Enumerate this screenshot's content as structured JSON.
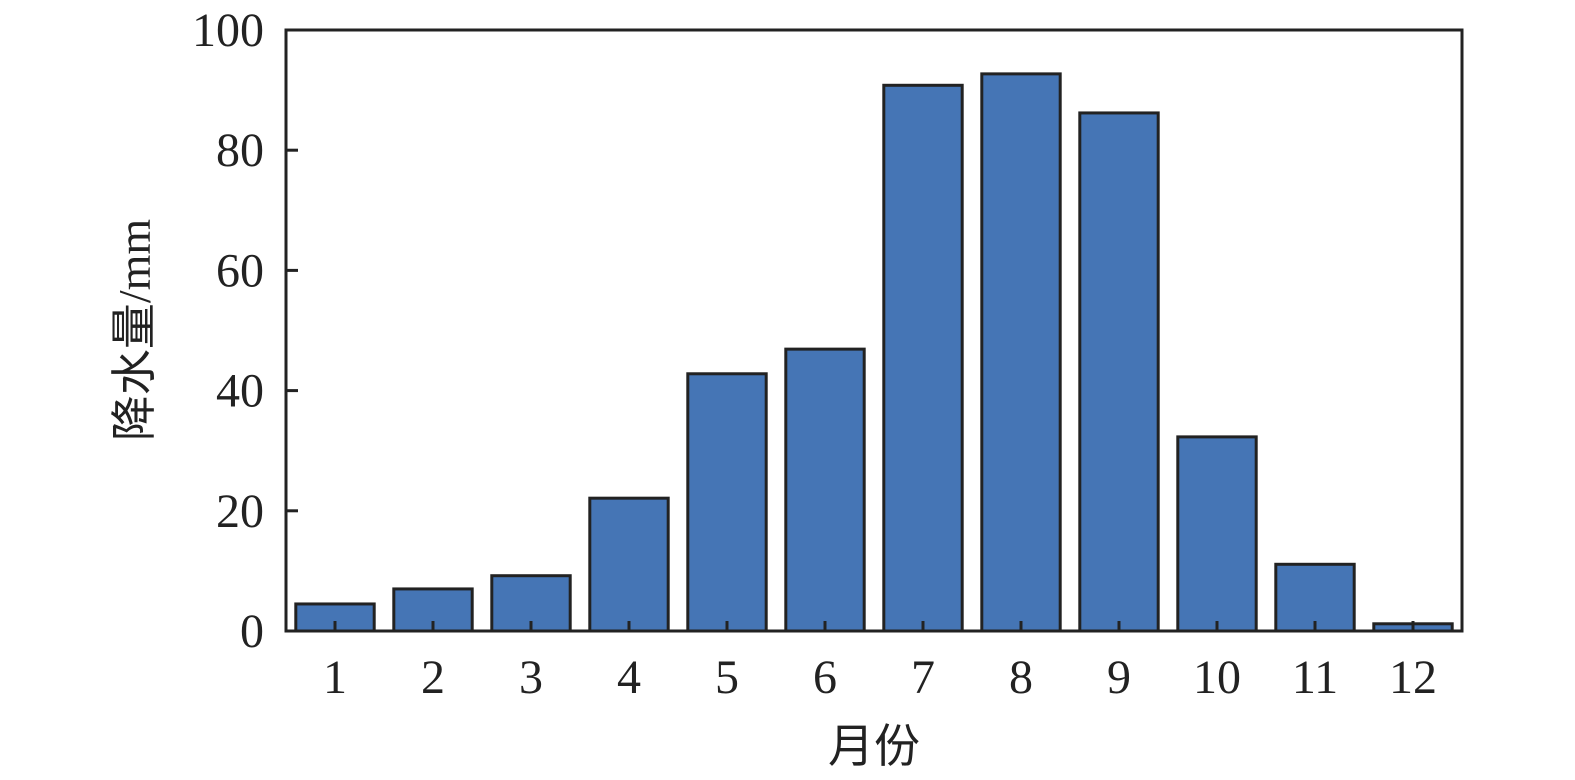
{
  "chart_data": {
    "type": "bar",
    "title": "",
    "xlabel": "月份",
    "ylabel": "降水量/mm",
    "categories": [
      "1",
      "2",
      "3",
      "4",
      "5",
      "6",
      "7",
      "8",
      "9",
      "10",
      "11",
      "12"
    ],
    "values": [
      4.5,
      7.0,
      9.2,
      22.1,
      42.8,
      46.9,
      90.8,
      92.7,
      86.2,
      32.3,
      11.1,
      1.2
    ],
    "ylim": [
      0,
      100
    ],
    "yticks": [
      0,
      20,
      40,
      60,
      80,
      100
    ],
    "grid": false,
    "bar_color": "#4575b5",
    "edge_color": "#222222"
  }
}
